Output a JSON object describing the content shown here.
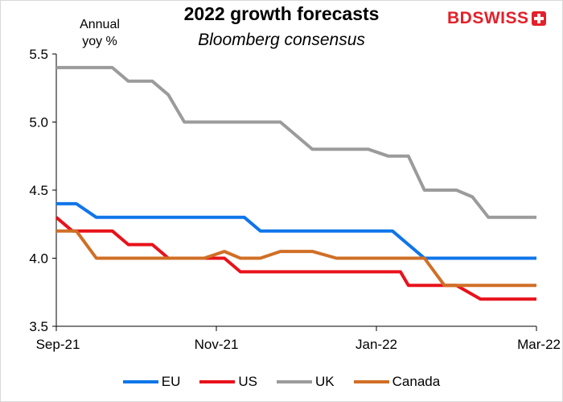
{
  "chart_data": {
    "type": "line",
    "title": "2022 growth forecasts",
    "subtitle": "Bloomberg consensus",
    "ylabel_line1": "Annual",
    "ylabel_line2": "yoy %",
    "ylim": [
      3.5,
      5.5
    ],
    "yticks": [
      "3.5",
      "4.0",
      "4.5",
      "5.0",
      "5.5"
    ],
    "xticks": [
      {
        "label": "Sep-21",
        "x": 0
      },
      {
        "label": "Nov-21",
        "x": 2
      },
      {
        "label": "Jan-22",
        "x": 4
      },
      {
        "label": "Mar-22",
        "x": 6
      }
    ],
    "xlim": [
      0,
      6
    ],
    "series": [
      {
        "name": "EU",
        "color": "#0f75e9",
        "x": [
          0,
          0.25,
          0.5,
          1.5,
          2.35,
          2.55,
          4.2,
          4.6,
          6
        ],
        "values": [
          4.4,
          4.4,
          4.3,
          4.3,
          4.3,
          4.2,
          4.2,
          4.0,
          4.0
        ]
      },
      {
        "name": "US",
        "color": "#e8121b",
        "x": [
          0,
          0.2,
          0.45,
          0.7,
          0.9,
          1.2,
          1.4,
          2.1,
          2.3,
          2.6,
          4.3,
          4.4,
          4.8,
          5.0,
          5.3,
          5.35,
          6
        ],
        "values": [
          4.3,
          4.2,
          4.2,
          4.2,
          4.1,
          4.1,
          4.0,
          4.0,
          3.9,
          3.9,
          3.9,
          3.8,
          3.8,
          3.8,
          3.7,
          3.7,
          3.7
        ]
      },
      {
        "name": "UK",
        "color": "#9b9b9b",
        "x": [
          0,
          0.7,
          0.9,
          1.2,
          1.4,
          1.6,
          2.5,
          2.8,
          3.2,
          3.9,
          4.15,
          4.4,
          4.6,
          5.0,
          5.2,
          5.4,
          6
        ],
        "values": [
          5.4,
          5.4,
          5.3,
          5.3,
          5.2,
          5.0,
          5.0,
          5.0,
          4.8,
          4.8,
          4.75,
          4.75,
          4.5,
          4.5,
          4.45,
          4.3,
          4.3
        ]
      },
      {
        "name": "Canada",
        "color": "#d06f26",
        "x": [
          0,
          0.25,
          0.5,
          1.2,
          1.85,
          2.1,
          2.3,
          2.55,
          2.8,
          3.2,
          3.5,
          4.6,
          4.85,
          6
        ],
        "values": [
          4.2,
          4.2,
          4.0,
          4.0,
          4.0,
          4.05,
          4.0,
          4.0,
          4.05,
          4.05,
          4.0,
          4.0,
          3.8,
          3.8
        ]
      }
    ]
  },
  "logo": {
    "part1": "BD",
    "part2": "SWISS"
  }
}
